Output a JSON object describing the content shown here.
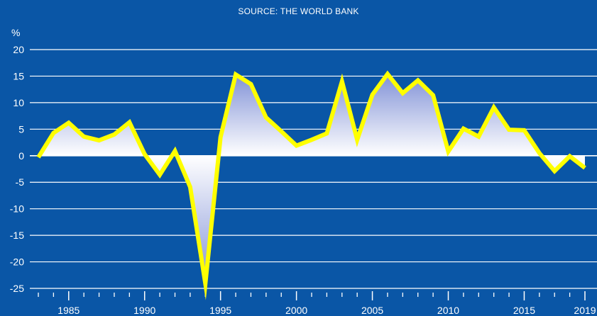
{
  "source_label": "SOURCE: THE WORLD BANK",
  "chart_data": {
    "type": "area",
    "ylabel": "%",
    "ylim": [
      -25,
      20
    ],
    "yticks": [
      20,
      15,
      10,
      5,
      0,
      -5,
      -10,
      -15,
      -20,
      -25
    ],
    "xlim": [
      1983,
      2019
    ],
    "xticks_labeled": [
      1985,
      1990,
      1995,
      2000,
      2005,
      2010,
      2015,
      2019
    ],
    "grid": "horizontal",
    "colors": {
      "background": "#0a56a6",
      "line": "#ffff00",
      "grid": "#ffffff",
      "fill_edge": "#7f90d6",
      "fill_base": "#ffffff"
    },
    "series": [
      {
        "x": [
          1983,
          1984,
          1985,
          1986,
          1987,
          1988,
          1989,
          1990,
          1991,
          1992,
          1993,
          1994,
          1995,
          1996,
          1997,
          1998,
          1999,
          2000,
          2001,
          2002,
          2003,
          2004,
          2005,
          2006,
          2007,
          2008,
          2009,
          2010,
          2011,
          2012,
          2013,
          2014,
          2015,
          2016,
          2017,
          2018,
          2019
        ],
        "values": [
          -0.3,
          4.3,
          6.2,
          3.6,
          2.9,
          4.0,
          6.3,
          0.3,
          -3.6,
          0.9,
          -5.9,
          -24.1,
          3.5,
          15.3,
          13.5,
          7.2,
          4.6,
          1.9,
          3.0,
          4.2,
          14.0,
          3.0,
          11.5,
          15.4,
          11.8,
          14.2,
          11.4,
          0.8,
          5.1,
          3.6,
          9.1,
          4.9,
          4.8,
          0.5,
          -2.9,
          -0.1,
          -2.3
        ]
      }
    ]
  }
}
